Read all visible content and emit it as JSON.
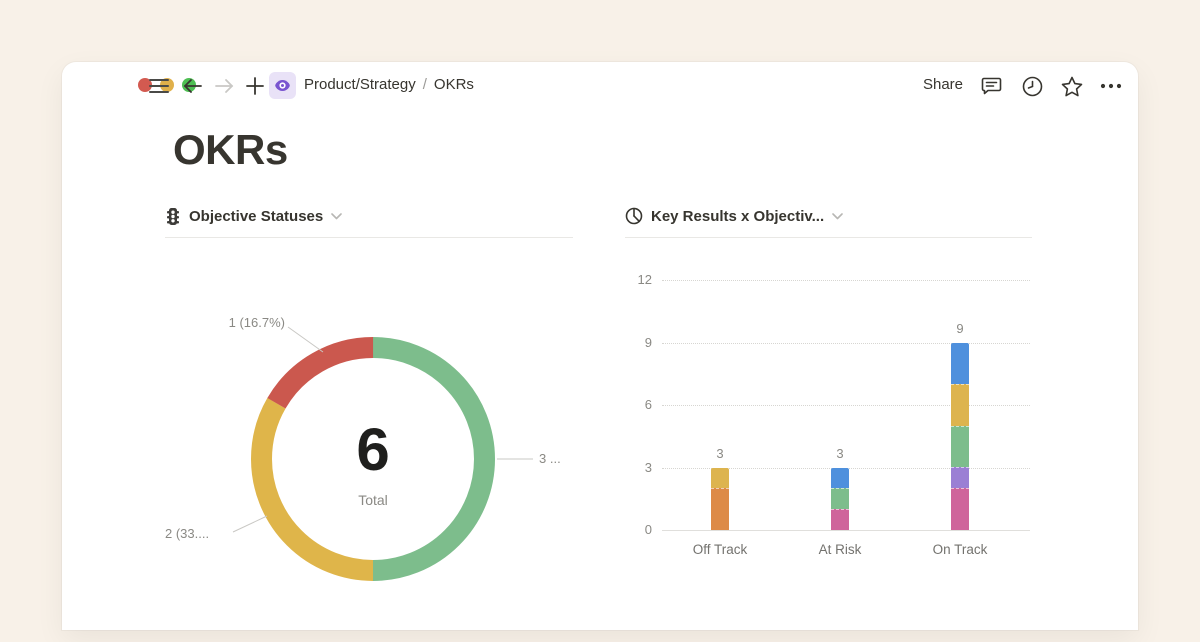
{
  "colors": {
    "background": "#f8f1e8",
    "card": "#ffffff",
    "text": "#37352f",
    "muted": "#8a8984",
    "divider": "#e9e8e5",
    "traffic_red": "#d35a50",
    "traffic_yellow": "#e0b04a",
    "traffic_green": "#4ebf53",
    "page_icon_purple": "#7a55d0"
  },
  "toolbar": {
    "breadcrumb": {
      "parent": "Product/Strategy",
      "separator": "/",
      "current": "OKRs"
    },
    "share_label": "Share"
  },
  "page": {
    "title": "OKRs"
  },
  "chart_data": [
    {
      "type": "pie",
      "donut": true,
      "title": "Objective Statuses",
      "icon": "traffic-light-icon",
      "total": 6,
      "center": {
        "value": "6",
        "caption": "Total"
      },
      "start": "top",
      "direction": "clockwise",
      "legend_position": "none",
      "segments": [
        {
          "value": 3,
          "color": "#7dbd8c",
          "label": "3 ..."
        },
        {
          "value": 2,
          "color": "#dfb54a",
          "label": "2 (33...."
        },
        {
          "value": 1,
          "color": "#cb584e",
          "label": "1 (16.7%)"
        }
      ]
    },
    {
      "type": "bar",
      "stacked": true,
      "title": "Key Results x Objectiv...",
      "icon": "pie-chart-icon",
      "categories": [
        "Off Track",
        "At Risk",
        "On Track"
      ],
      "yticks": [
        0,
        3,
        6,
        9,
        12
      ],
      "ylim": [
        0,
        12
      ],
      "grid": "dotted-horizontal",
      "legend_position": "none",
      "bars": [
        {
          "category": "Off Track",
          "total": 3,
          "total_label": "3",
          "segments": [
            {
              "value": 2,
              "color": "#dd8a47"
            },
            {
              "value": 1,
              "color": "#ddb44e"
            }
          ]
        },
        {
          "category": "At Risk",
          "total": 3,
          "total_label": "3",
          "segments": [
            {
              "value": 1,
              "color": "#cf649b"
            },
            {
              "value": 1,
              "color": "#7dbd8c"
            },
            {
              "value": 1,
              "color": "#4e90dd"
            }
          ]
        },
        {
          "category": "On Track",
          "total": 9,
          "total_label": "9",
          "segments": [
            {
              "value": 2,
              "color": "#cf649b"
            },
            {
              "value": 1,
              "color": "#9b7fd4"
            },
            {
              "value": 2,
              "color": "#7dbd8c"
            },
            {
              "value": 2,
              "color": "#ddb44e"
            },
            {
              "value": 2,
              "color": "#4e90dd"
            }
          ]
        }
      ]
    }
  ]
}
